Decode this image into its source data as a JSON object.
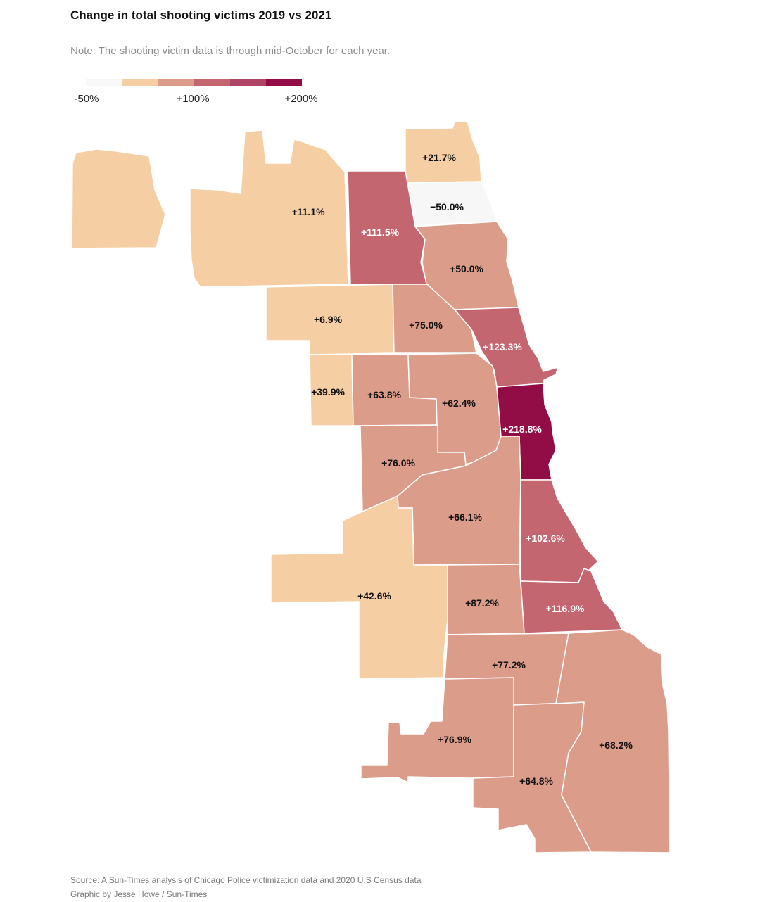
{
  "title": "Change in total shooting victims 2019 vs 2021",
  "note": "Note: The shooting victim data is through mid-October for each year.",
  "legend": {
    "colors": [
      "#f7f7f7",
      "#f5cea3",
      "#dc9c8a",
      "#c4666f",
      "#ae4466",
      "#920c45"
    ],
    "labels": [
      "-50%",
      "+100%",
      "+200%"
    ]
  },
  "areas": [
    {
      "id": "far-northwest",
      "value_label": "+11.1%",
      "value": 11.1,
      "color": "#f5cea3",
      "label_color": "#111111"
    },
    {
      "id": "far-north",
      "value_label": "+21.7%",
      "value": 21.7,
      "color": "#f5cea3",
      "label_color": "#111111"
    },
    {
      "id": "rogers-park-edgewater",
      "value_label": "−50.0%",
      "value": -50.0,
      "color": "#f7f7f7",
      "label_color": "#111111"
    },
    {
      "id": "north-central",
      "value_label": "+111.5%",
      "value": 111.5,
      "color": "#c4666f",
      "label_color": "#ffffff"
    },
    {
      "id": "north-lakefront",
      "value_label": "+50.0%",
      "value": 50.0,
      "color": "#dc9c8a",
      "label_color": "#111111"
    },
    {
      "id": "northwest",
      "value_label": "+6.9%",
      "value": 6.9,
      "color": "#f5cea3",
      "label_color": "#111111"
    },
    {
      "id": "logan-square-area",
      "value_label": "+75.0%",
      "value": 75.0,
      "color": "#dc9c8a",
      "label_color": "#111111"
    },
    {
      "id": "near-north-lakeview",
      "value_label": "+123.3%",
      "value": 123.3,
      "color": "#c4666f",
      "label_color": "#ffffff"
    },
    {
      "id": "austin",
      "value_label": "+39.9%",
      "value": 39.9,
      "color": "#f5cea3",
      "label_color": "#111111"
    },
    {
      "id": "humboldt-park",
      "value_label": "+63.8%",
      "value": 63.8,
      "color": "#dc9c8a",
      "label_color": "#111111"
    },
    {
      "id": "west-town",
      "value_label": "+62.4%",
      "value": 62.4,
      "color": "#dc9c8a",
      "label_color": "#111111"
    },
    {
      "id": "downtown",
      "value_label": "+218.8%",
      "value": 218.8,
      "color": "#920c45",
      "label_color": "#ffffff"
    },
    {
      "id": "west-side",
      "value_label": "+76.0%",
      "value": 76.0,
      "color": "#dc9c8a",
      "label_color": "#111111"
    },
    {
      "id": "southwest-central",
      "value_label": "+66.1%",
      "value": 66.1,
      "color": "#dc9c8a",
      "label_color": "#111111"
    },
    {
      "id": "south-lakefront",
      "value_label": "+102.6%",
      "value": 102.6,
      "color": "#c4666f",
      "label_color": "#ffffff"
    },
    {
      "id": "far-southwest",
      "value_label": "+42.6%",
      "value": 42.6,
      "color": "#f5cea3",
      "label_color": "#111111"
    },
    {
      "id": "englewood",
      "value_label": "+87.2%",
      "value": 87.2,
      "color": "#dc9c8a",
      "label_color": "#111111"
    },
    {
      "id": "south-shore",
      "value_label": "+116.9%",
      "value": 116.9,
      "color": "#c4666f",
      "label_color": "#ffffff"
    },
    {
      "id": "auburn-gresham",
      "value_label": "+77.2%",
      "value": 77.2,
      "color": "#dc9c8a",
      "label_color": "#111111"
    },
    {
      "id": "morgan-park-beverly",
      "value_label": "+76.9%",
      "value": 76.9,
      "color": "#dc9c8a",
      "label_color": "#111111"
    },
    {
      "id": "roseland-pullman",
      "value_label": "+64.8%",
      "value": 64.8,
      "color": "#dc9c8a",
      "label_color": "#111111"
    },
    {
      "id": "far-southeast",
      "value_label": "+68.2%",
      "value": 68.2,
      "color": "#dc9c8a",
      "label_color": "#111111"
    }
  ],
  "footer": {
    "source": "Source: A Sun-Times analysis of Chicago Police victimization data and 2020 U.S Census data",
    "credit": "Graphic by Jesse Howe / Sun-Times"
  }
}
